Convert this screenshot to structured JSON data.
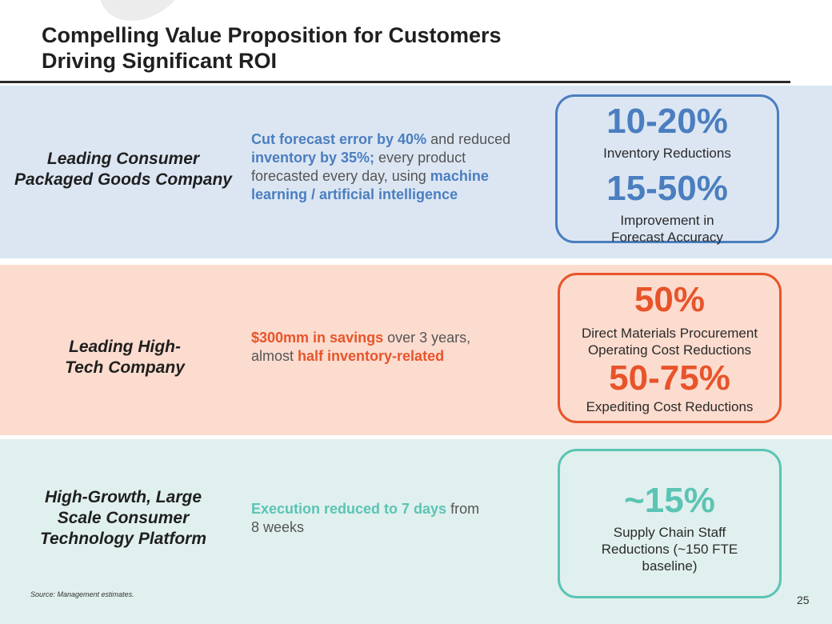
{
  "title": {
    "line1": "Compelling Value Proposition for Customers",
    "line2": "Driving Significant ROI"
  },
  "colors": {
    "blue": "#4a7ebf",
    "orange": "#e8542a",
    "teal": "#5bc4b4"
  },
  "rows": [
    {
      "company": [
        "Leading Consumer",
        "Packaged Goods Company"
      ],
      "desc": [
        {
          "t": "Cut forecast error by 40%",
          "bold": true
        },
        {
          "t": " and reduced ",
          "bold": false
        },
        {
          "t": "inventory by 35%;",
          "bold": true
        },
        {
          "t": " every product forecasted every day, using ",
          "bold": false
        },
        {
          "t": "machine learning / artificial intelligence",
          "bold": true
        }
      ],
      "metrics": [
        {
          "value": "10-20%",
          "label": [
            "Inventory Reductions"
          ]
        },
        {
          "value": "15-50%",
          "label": [
            "Improvement in",
            "Forecast Accuracy"
          ]
        }
      ]
    },
    {
      "company": [
        "Leading High-",
        "Tech Company"
      ],
      "desc": [
        {
          "t": "$300mm in savings",
          "bold": true
        },
        {
          "t": " over 3 years, almost ",
          "bold": false
        },
        {
          "t": "half inventory-related",
          "bold": true
        }
      ],
      "metrics": [
        {
          "value": "50%",
          "label": [
            "Direct Materials Procurement",
            "Operating Cost Reductions"
          ]
        },
        {
          "value": "50-75%",
          "label": [
            "Expediting Cost Reductions"
          ]
        }
      ]
    },
    {
      "company": [
        "High-Growth, Large",
        "Scale Consumer",
        "Technology Platform"
      ],
      "desc": [
        {
          "t": "Execution reduced to 7 days",
          "bold": true
        },
        {
          "t": " from 8 weeks",
          "bold": false
        }
      ],
      "metrics": [
        {
          "value": "~15%",
          "label": [
            "Supply Chain Staff",
            "Reductions (~150 FTE",
            "baseline)"
          ]
        }
      ]
    }
  ],
  "footnote": "Source: Management estimates.",
  "page_number": "25"
}
